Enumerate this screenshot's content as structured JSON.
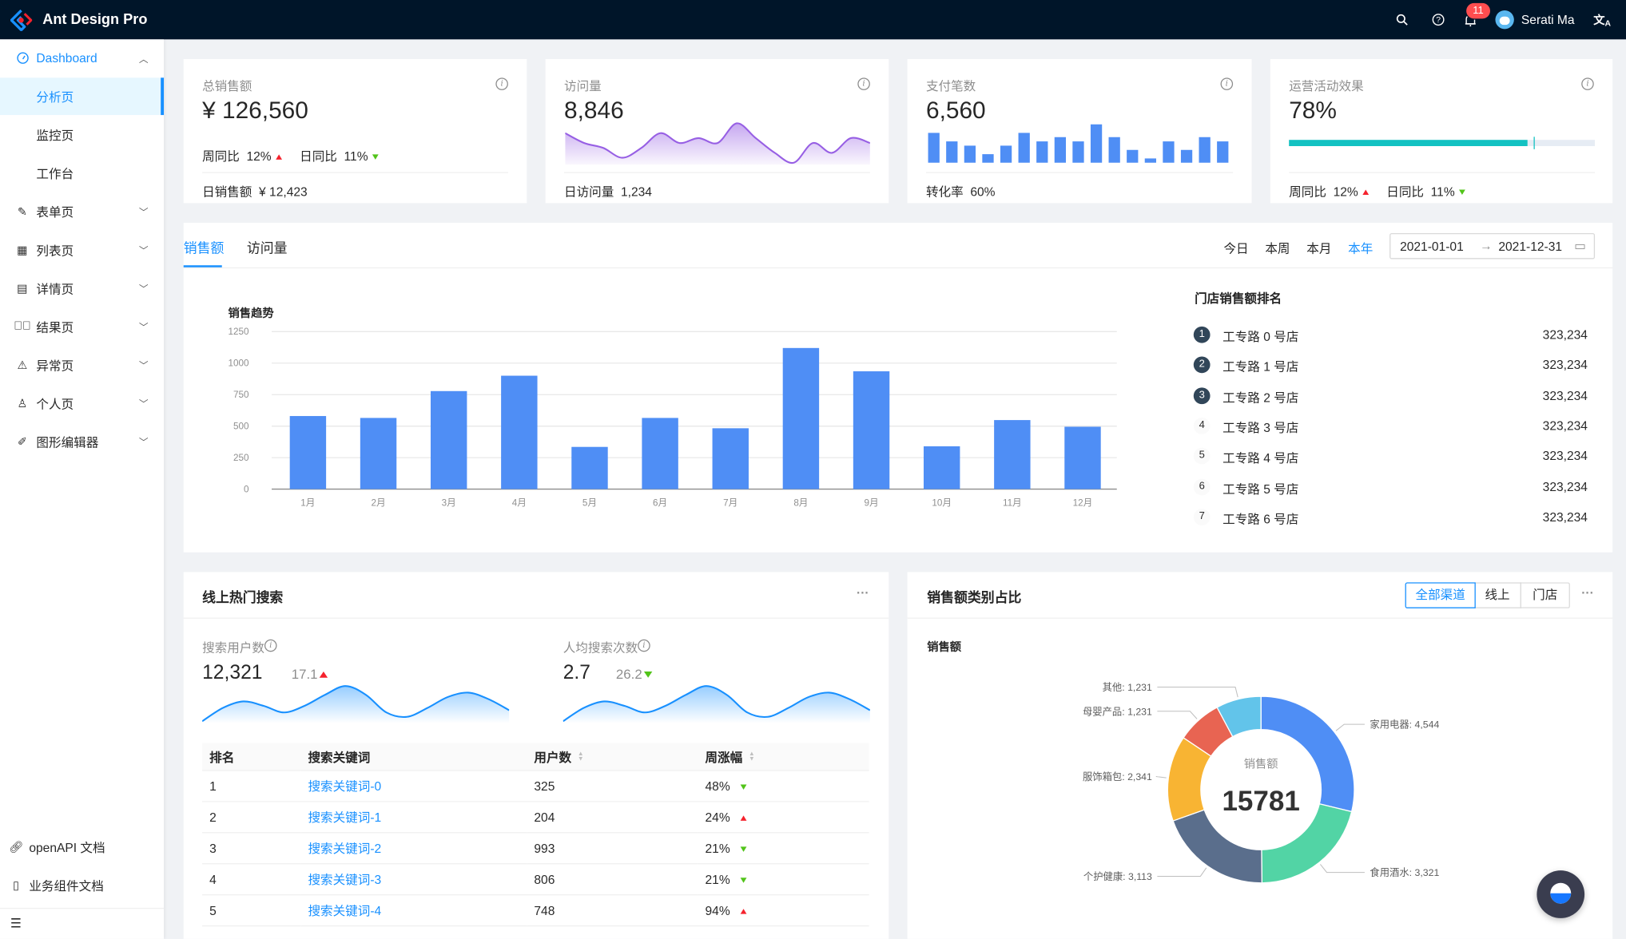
{
  "header": {
    "app_title": "Ant Design Pro",
    "user_name": "Serati Ma",
    "notification_count": "11",
    "icons": [
      "search-icon",
      "question-icon",
      "bell-icon",
      "avatar",
      "translate-icon"
    ]
  },
  "sidebar": {
    "items": [
      {
        "label": "Dashboard",
        "icon": "dashboard-icon"
      },
      {
        "label": "分析页"
      },
      {
        "label": "监控页"
      },
      {
        "label": "工作台"
      },
      {
        "label": "表单页",
        "icon": "form-icon"
      },
      {
        "label": "列表页",
        "icon": "table-icon"
      },
      {
        "label": "详情页",
        "icon": "profile-icon"
      },
      {
        "label": "结果页",
        "icon": "check-circle-icon"
      },
      {
        "label": "异常页",
        "icon": "warning-icon"
      },
      {
        "label": "个人页",
        "icon": "user-icon"
      },
      {
        "label": "图形编辑器",
        "icon": "highlight-icon"
      }
    ],
    "footer": [
      {
        "label": "openAPI 文档",
        "icon": "link-icon"
      },
      {
        "label": "业务组件文档",
        "icon": "book-icon"
      }
    ]
  },
  "stats": {
    "sales": {
      "title": "总销售额",
      "value": "¥ 126,560",
      "wow_label": "周同比",
      "wow": "12%",
      "dod_label": "日同比",
      "dod": "11%",
      "footer_label": "日销售额",
      "footer_value": "¥ 12,423"
    },
    "visits": {
      "title": "访问量",
      "value": "8,846",
      "footer_label": "日访问量",
      "footer_value": "1,234",
      "trend": [
        7,
        5,
        4,
        2,
        4,
        7,
        5,
        6,
        5,
        9,
        6,
        3,
        1,
        5,
        3,
        6,
        5
      ]
    },
    "payments": {
      "title": "支付笔数",
      "value": "6,560",
      "footer_label": "转化率",
      "footer_value": "60%",
      "bars": [
        7,
        5,
        4,
        2,
        4,
        7,
        5,
        6,
        5,
        9,
        6,
        3,
        1,
        5,
        3,
        6,
        5
      ]
    },
    "operations": {
      "title": "运营活动效果",
      "value": "78%",
      "progress": 78,
      "target": 80,
      "progress_color": "#13c2c2",
      "wow_label": "周同比",
      "wow": "12%",
      "dod_label": "日同比",
      "dod": "11%"
    }
  },
  "sales_card": {
    "tabs": [
      "销售额",
      "访问量"
    ],
    "ranges": [
      "今日",
      "本周",
      "本月",
      "本年"
    ],
    "active_range": "本年",
    "date_start": "2021-01-01",
    "date_end": "2021-12-31",
    "ranking_title": "门店销售额排名",
    "ranking": [
      {
        "rank": "1",
        "name": "工专路 0 号店",
        "value": "323,234"
      },
      {
        "rank": "2",
        "name": "工专路 1 号店",
        "value": "323,234"
      },
      {
        "rank": "3",
        "name": "工专路 2 号店",
        "value": "323,234"
      },
      {
        "rank": "4",
        "name": "工专路 3 号店",
        "value": "323,234"
      },
      {
        "rank": "5",
        "name": "工专路 4 号店",
        "value": "323,234"
      },
      {
        "rank": "6",
        "name": "工专路 5 号店",
        "value": "323,234"
      },
      {
        "rank": "7",
        "name": "工专路 6 号店",
        "value": "323,234"
      }
    ]
  },
  "chart_data": [
    {
      "type": "bar",
      "title": "销售趋势",
      "categories": [
        "1月",
        "2月",
        "3月",
        "4月",
        "5月",
        "6月",
        "7月",
        "8月",
        "9月",
        "10月",
        "11月",
        "12月"
      ],
      "values": [
        580,
        565,
        778,
        900,
        335,
        565,
        483,
        1120,
        935,
        340,
        548,
        495
      ],
      "yticks": [
        "0",
        "250",
        "500",
        "750",
        "1000",
        "1250"
      ],
      "ylim": [
        0,
        1250
      ],
      "xlabel": "",
      "ylabel": "",
      "grid": true,
      "color": "#4f8ef5"
    },
    {
      "type": "pie",
      "title": "销售额",
      "center_label": "销售额",
      "center_value": "15781",
      "categories": [
        "家用电器",
        "食用酒水",
        "个护健康",
        "服饰箱包",
        "母婴产品",
        "其他"
      ],
      "values": [
        4544,
        3321,
        3113,
        2341,
        1231,
        1231
      ],
      "value_labels": [
        "4,544",
        "3,321",
        "3,113",
        "2,341",
        "1,231",
        "1,231"
      ],
      "colors": [
        "#4f8ef5",
        "#52d4a5",
        "#5a6e8c",
        "#f8b433",
        "#e86452",
        "#62c4ea"
      ]
    }
  ],
  "search_card": {
    "title": "线上热门搜索",
    "users_label": "搜索用户数",
    "users_value": "12,321",
    "users_change": "17.1",
    "avg_label": "人均搜索次数",
    "avg_value": "2.7",
    "avg_change": "26.2",
    "trend": [
      1,
      4,
      5.5,
      4.5,
      3,
      4.5,
      7,
      9,
      7,
      3,
      2,
      4,
      6.5,
      7.5,
      6,
      3.5
    ],
    "columns": [
      "排名",
      "搜索关键词",
      "用户数",
      "周涨幅"
    ],
    "rows": [
      {
        "rank": "1",
        "keyword": "搜索关键词-0",
        "count": "325",
        "range": "48%",
        "dir": "down"
      },
      {
        "rank": "2",
        "keyword": "搜索关键词-1",
        "count": "204",
        "range": "24%",
        "dir": "up"
      },
      {
        "rank": "3",
        "keyword": "搜索关键词-2",
        "count": "993",
        "range": "21%",
        "dir": "down"
      },
      {
        "rank": "4",
        "keyword": "搜索关键词-3",
        "count": "806",
        "range": "21%",
        "dir": "down"
      },
      {
        "rank": "5",
        "keyword": "搜索关键词-4",
        "count": "748",
        "range": "94%",
        "dir": "up"
      }
    ]
  },
  "category_card": {
    "title": "销售额类别占比",
    "channels": [
      "全部渠道",
      "线上",
      "门店"
    ],
    "active_channel": "全部渠道",
    "subtitle": "销售额"
  },
  "more_label": "···"
}
